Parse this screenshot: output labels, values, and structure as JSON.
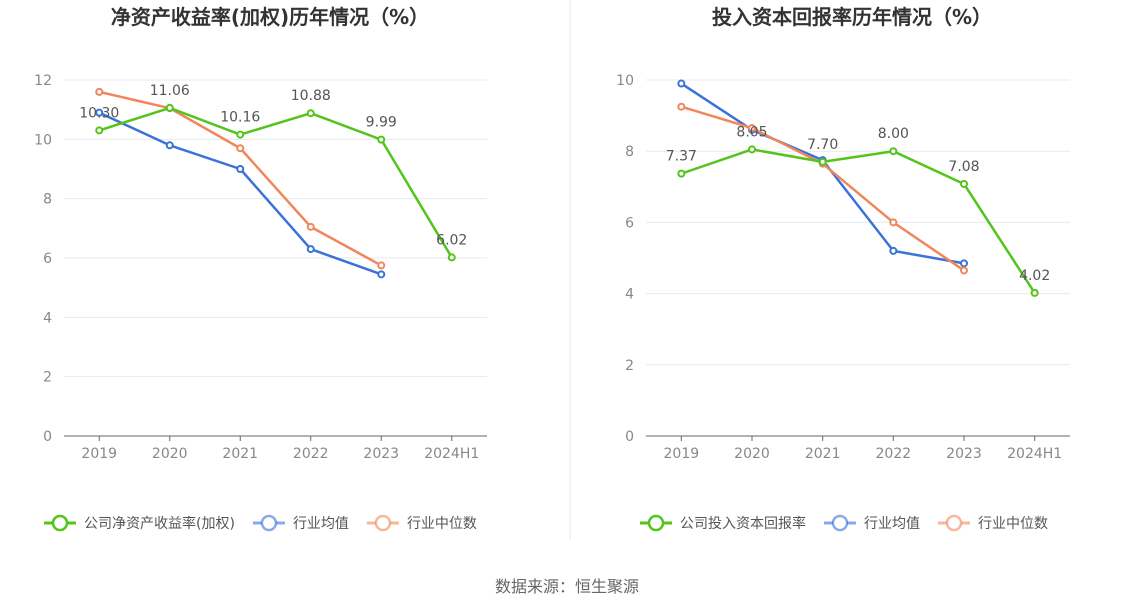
{
  "source_label": "数据来源：恒生聚源",
  "chart_data": [
    {
      "type": "line",
      "title": "净资产收益率(加权)历年情况（%）",
      "categories": [
        "2019",
        "2020",
        "2021",
        "2022",
        "2023",
        "2024H1"
      ],
      "ylim": [
        0,
        12
      ],
      "yticks": [
        0,
        2,
        4,
        6,
        8,
        10,
        12
      ],
      "grid": true,
      "legend_position": "bottom",
      "series": [
        {
          "name": "公司净资产收益率(加权)",
          "color": "#52c41a",
          "values": [
            10.3,
            11.06,
            10.16,
            10.88,
            9.99,
            6.02
          ],
          "labels": [
            "10.30",
            "11.06",
            "10.16",
            "10.88",
            "9.99",
            "6.02"
          ]
        },
        {
          "name": "行业均值",
          "color": "#3a72d8",
          "values": [
            10.9,
            9.8,
            9.0,
            6.3,
            5.45,
            null
          ]
        },
        {
          "name": "行业中位数",
          "color": "#f0875a",
          "values": [
            11.6,
            11.05,
            9.7,
            7.05,
            5.75,
            null
          ]
        }
      ]
    },
    {
      "type": "line",
      "title": "投入资本回报率历年情况（%）",
      "categories": [
        "2019",
        "2020",
        "2021",
        "2022",
        "2023",
        "2024H1"
      ],
      "ylim": [
        0,
        10
      ],
      "yticks": [
        0,
        2,
        4,
        6,
        8,
        10
      ],
      "grid": true,
      "legend_position": "bottom",
      "series": [
        {
          "name": "公司投入资本回报率",
          "color": "#52c41a",
          "values": [
            7.37,
            8.05,
            7.7,
            8.0,
            7.08,
            4.02
          ],
          "labels": [
            "7.37",
            "8.05",
            "7.70",
            "8.00",
            "7.08",
            "4.02"
          ]
        },
        {
          "name": "行业均值",
          "color": "#3a72d8",
          "values": [
            9.9,
            8.6,
            7.75,
            5.2,
            4.85,
            null
          ]
        },
        {
          "name": "行业中位数",
          "color": "#f0875a",
          "values": [
            9.25,
            8.65,
            7.65,
            6.0,
            4.65,
            null
          ]
        }
      ]
    }
  ]
}
